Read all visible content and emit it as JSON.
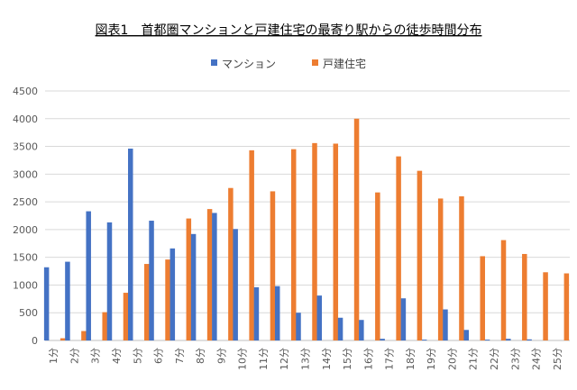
{
  "chart_data": {
    "type": "bar",
    "title": "図表1　首都圏マンションと戸建住宅の最寄り駅からの徒歩時間分布",
    "xlabel": "",
    "ylabel": "",
    "ylim": [
      0,
      4500
    ],
    "yticks": [
      0,
      500,
      1000,
      1500,
      2000,
      2500,
      3000,
      3500,
      4000,
      4500
    ],
    "grid": true,
    "legend_position": "top",
    "categories": [
      "1分",
      "2分",
      "3分",
      "4分",
      "5分",
      "6分",
      "7分",
      "8分",
      "9分",
      "10分",
      "11分",
      "12分",
      "13分",
      "14分",
      "15分",
      "16分",
      "17分",
      "18分",
      "19分",
      "20分",
      "21分",
      "22分",
      "23分",
      "24分",
      "25分"
    ],
    "series": [
      {
        "name": "マンション",
        "color": "#4472C4",
        "values": [
          1320,
          1420,
          2330,
          2130,
          3460,
          2160,
          1660,
          1920,
          2300,
          2010,
          960,
          980,
          500,
          810,
          410,
          370,
          30,
          760,
          15,
          560,
          190,
          15,
          30,
          20,
          0
        ]
      },
      {
        "name": "戸建住宅",
        "color": "#ED7D31",
        "values": [
          40,
          170,
          510,
          860,
          1380,
          1460,
          2200,
          2370,
          2750,
          3430,
          2690,
          3450,
          3560,
          3550,
          4000,
          2670,
          3320,
          3060,
          2560,
          2600,
          1520,
          1810,
          1560,
          1230,
          1210
        ]
      }
    ]
  }
}
